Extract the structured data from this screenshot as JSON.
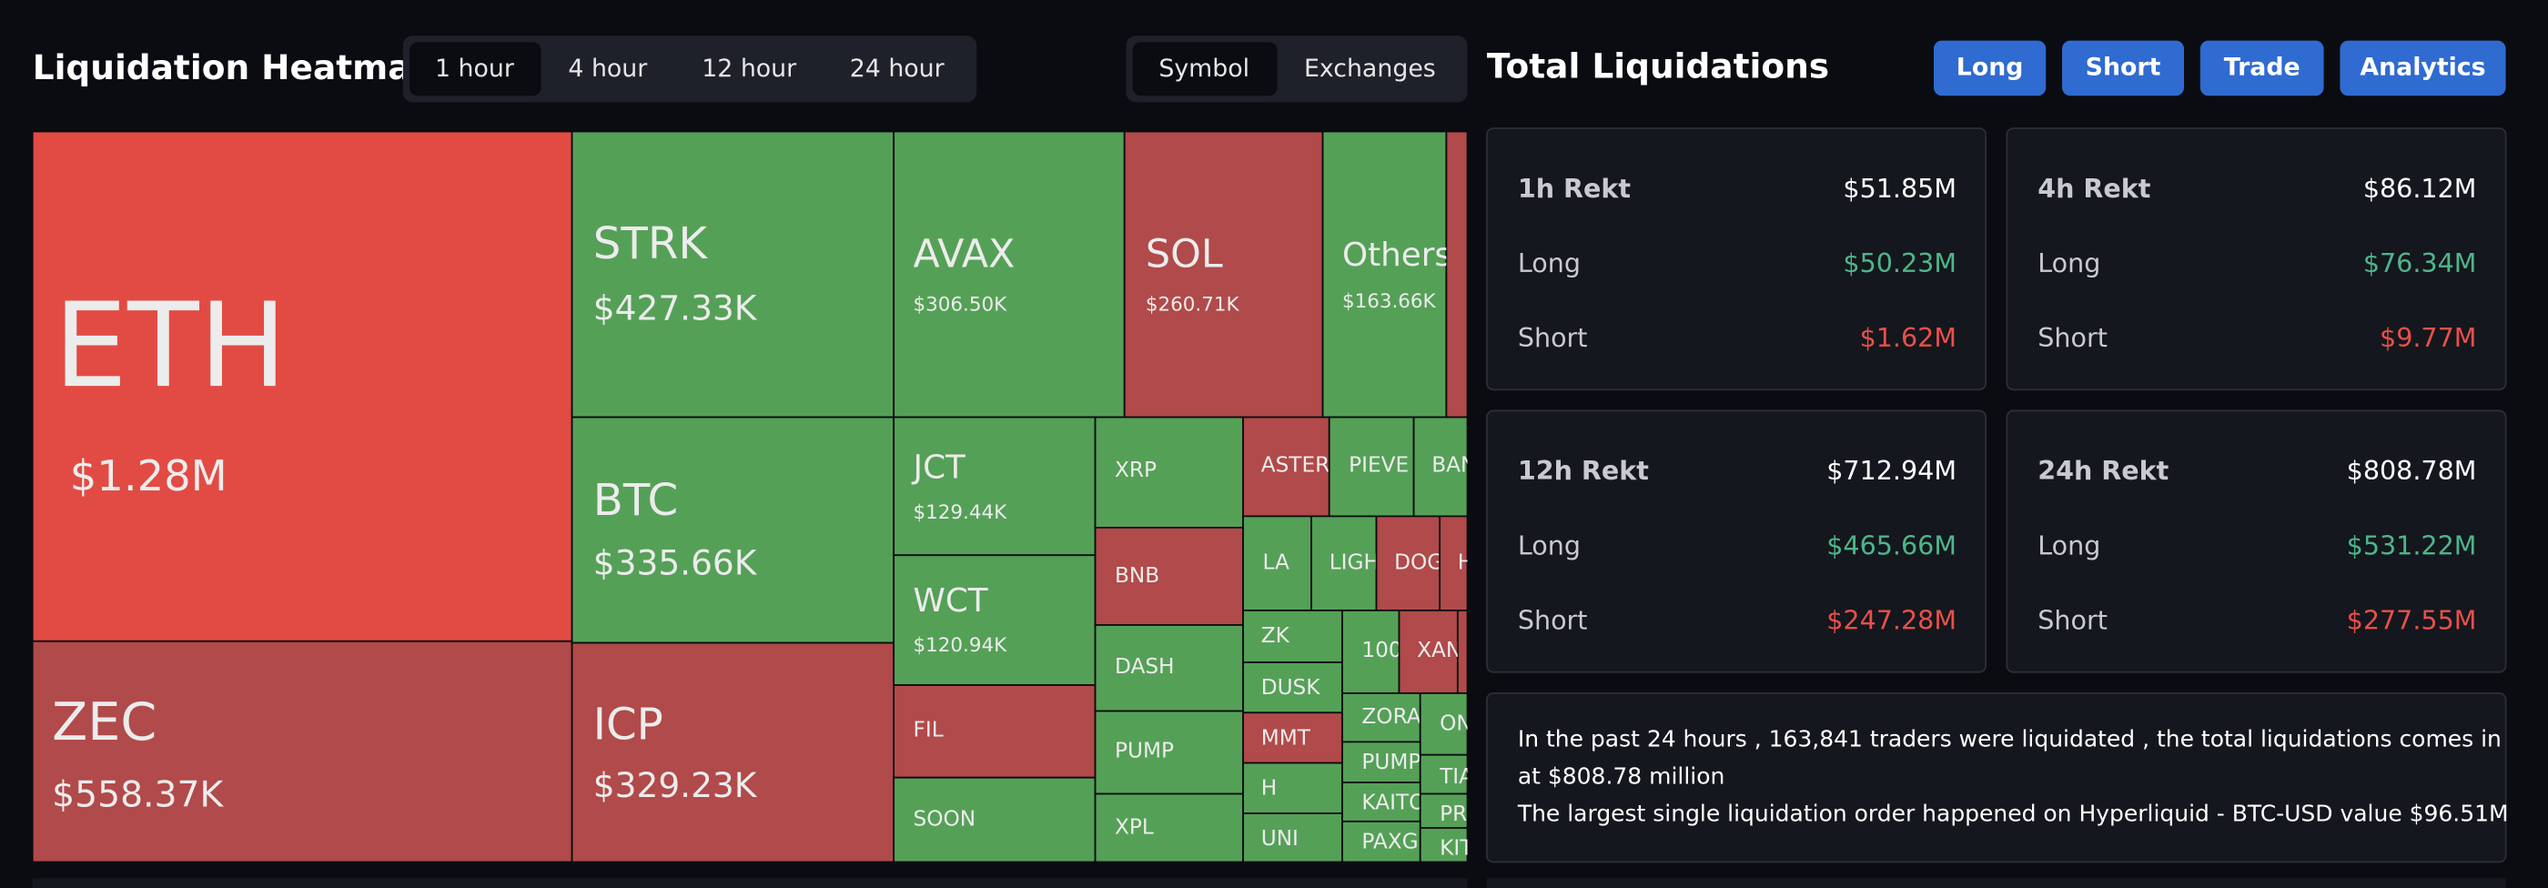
{
  "heatmap": {
    "title": "Liquidation Heatmap",
    "time_tabs": [
      "1 hour",
      "4 hour",
      "12 hour",
      "24 hour"
    ],
    "view_tabs": [
      "Symbol",
      "Exchanges"
    ],
    "tiles": [
      {
        "symbol": "ETH",
        "value": "$1.28M",
        "color": "#e24b43"
      },
      {
        "symbol": "ZEC",
        "value": "$558.37K",
        "color": "#b14a4a"
      },
      {
        "symbol": "STRK",
        "value": "$427.33K",
        "color": "#55a057"
      },
      {
        "symbol": "BTC",
        "value": "$335.66K",
        "color": "#55a057"
      },
      {
        "symbol": "ICP",
        "value": "$329.23K",
        "color": "#b14a4a"
      },
      {
        "symbol": "AVAX",
        "value": "$306.50K",
        "color": "#55a057"
      },
      {
        "symbol": "SOL",
        "value": "$260.71K",
        "color": "#b14a4a"
      },
      {
        "symbol": "Others",
        "value": "$163.66K",
        "color": "#55a057"
      },
      {
        "symbol": "JCT",
        "value": "$129.44K",
        "color": "#55a057"
      },
      {
        "symbol": "WCT",
        "value": "$120.94K",
        "color": "#55a057"
      },
      {
        "symbol": "FIL",
        "color": "#b14a4a"
      },
      {
        "symbol": "SOON",
        "color": "#55a057"
      },
      {
        "symbol": "XRP",
        "color": "#55a057"
      },
      {
        "symbol": "BNB",
        "color": "#b14a4a"
      },
      {
        "symbol": "DASH",
        "color": "#55a057"
      },
      {
        "symbol": "PUMP",
        "color": "#55a057"
      },
      {
        "symbol": "XPL",
        "color": "#55a057"
      },
      {
        "symbol": "ASTER",
        "color": "#b14a4a"
      },
      {
        "symbol": "PIEVE",
        "color": "#55a057"
      },
      {
        "symbol": "BAN",
        "color": "#55a057"
      },
      {
        "symbol": "LA",
        "color": "#55a057"
      },
      {
        "symbol": "LIGH",
        "color": "#55a057"
      },
      {
        "symbol": "DOG",
        "color": "#b14a4a"
      },
      {
        "symbol": "H",
        "color": "#b14a4a"
      },
      {
        "symbol": "ZK",
        "color": "#55a057"
      },
      {
        "symbol": "DUSK",
        "color": "#55a057"
      },
      {
        "symbol": "MMT",
        "color": "#b14a4a"
      },
      {
        "symbol": "H",
        "color": "#55a057"
      },
      {
        "symbol": "UNI",
        "color": "#55a057"
      },
      {
        "symbol": "100",
        "color": "#55a057"
      },
      {
        "symbol": "XAN",
        "color": "#b14a4a"
      },
      {
        "symbol": "ZORA",
        "color": "#55a057"
      },
      {
        "symbol": "ON",
        "color": "#55a057"
      },
      {
        "symbol": "PUMP",
        "color": "#55a057"
      },
      {
        "symbol": "TIA",
        "color": "#55a057"
      },
      {
        "symbol": "KAITO",
        "color": "#55a057"
      },
      {
        "symbol": "PR",
        "color": "#55a057"
      },
      {
        "symbol": "PAXG",
        "color": "#55a057"
      },
      {
        "symbol": "KIT",
        "color": "#55a057"
      }
    ]
  },
  "totals": {
    "title": "Total Liquidations",
    "buttons": [
      "Long",
      "Short",
      "Trade",
      "Analytics"
    ],
    "cards": [
      {
        "label": "1h Rekt",
        "total": "$51.85M",
        "rows": [
          {
            "label": "Long",
            "value": "$50.23M"
          },
          {
            "label": "Short",
            "value": "$1.62M"
          }
        ]
      },
      {
        "label": "4h Rekt",
        "total": "$86.12M",
        "rows": [
          {
            "label": "Long",
            "value": "$76.34M"
          },
          {
            "label": "Short",
            "value": "$9.77M"
          }
        ]
      },
      {
        "label": "12h Rekt",
        "total": "$712.94M",
        "rows": [
          {
            "label": "Long",
            "value": "$465.66M"
          },
          {
            "label": "Short",
            "value": "$247.28M"
          }
        ]
      },
      {
        "label": "24h Rekt",
        "total": "$808.78M",
        "rows": [
          {
            "label": "Long",
            "value": "$531.22M"
          },
          {
            "label": "Short",
            "value": "$277.55M"
          }
        ]
      }
    ],
    "summary": [
      "In the past 24 hours , 163,841 traders were liquidated , the total liquidations comes in",
      "at $808.78 million",
      "The largest single liquidation order happened on Hyperliquid - BTC-USD value $96.51M"
    ]
  }
}
